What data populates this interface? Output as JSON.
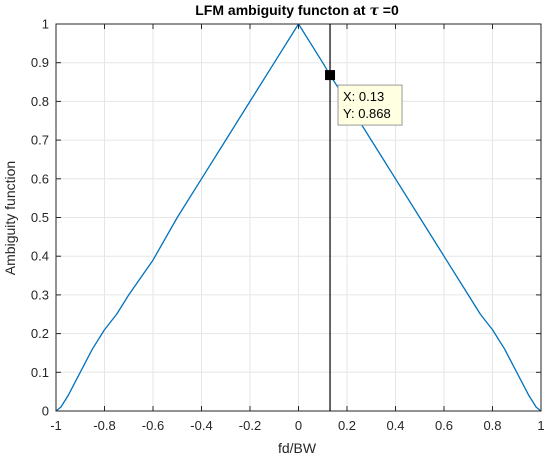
{
  "chart_data": {
    "type": "line",
    "title_prefix": "LFM ambiguity functon at ",
    "title_symbol": "τ",
    "title_suffix": " =0",
    "xlabel": "fd/BW",
    "ylabel": "Ambiguity function",
    "xlim": [
      -1,
      1
    ],
    "ylim": [
      0,
      1
    ],
    "xticks": [
      -1,
      -0.8,
      -0.6,
      -0.4,
      -0.2,
      0,
      0.2,
      0.4,
      0.6,
      0.8,
      1
    ],
    "yticks": [
      0,
      0.1,
      0.2,
      0.3,
      0.4,
      0.5,
      0.6,
      0.7,
      0.8,
      0.9,
      1
    ],
    "xtick_labels": [
      "-1",
      "-0.8",
      "-0.6",
      "-0.4",
      "-0.2",
      "0",
      "0.2",
      "0.4",
      "0.6",
      "0.8",
      "1"
    ],
    "ytick_labels": [
      "0",
      "0.1",
      "0.2",
      "0.3",
      "0.4",
      "0.5",
      "0.6",
      "0.7",
      "0.8",
      "0.9",
      "1"
    ],
    "grid": true,
    "series": [
      {
        "color": "#0072BD",
        "x": [
          -1,
          -0.98,
          -0.95,
          -0.9,
          -0.85,
          -0.8,
          -0.75,
          -0.7,
          -0.6,
          -0.5,
          -0.4,
          -0.3,
          -0.2,
          -0.1,
          0,
          0.1,
          0.13,
          0.2,
          0.3,
          0.4,
          0.5,
          0.6,
          0.7,
          0.75,
          0.8,
          0.85,
          0.9,
          0.95,
          0.98,
          1
        ],
        "y": [
          0,
          0.01,
          0.04,
          0.1,
          0.16,
          0.21,
          0.25,
          0.3,
          0.39,
          0.5,
          0.6,
          0.7,
          0.8,
          0.9,
          1,
          0.9,
          0.868,
          0.8,
          0.7,
          0.6,
          0.5,
          0.4,
          0.3,
          0.25,
          0.21,
          0.16,
          0.1,
          0.04,
          0.01,
          0
        ]
      }
    ],
    "cursor_line_x": 0.13,
    "datatip": {
      "x": 0.13,
      "y": 0.868,
      "x_text": "X: 0.13",
      "y_text": "Y: 0.868"
    },
    "colors": {
      "axes_frame": "#262626",
      "grid": "#e6e6e6",
      "cursor_line": "#000000",
      "tip_background": "#ffffe1",
      "tip_border": "#999999",
      "marker": "#000000"
    }
  }
}
